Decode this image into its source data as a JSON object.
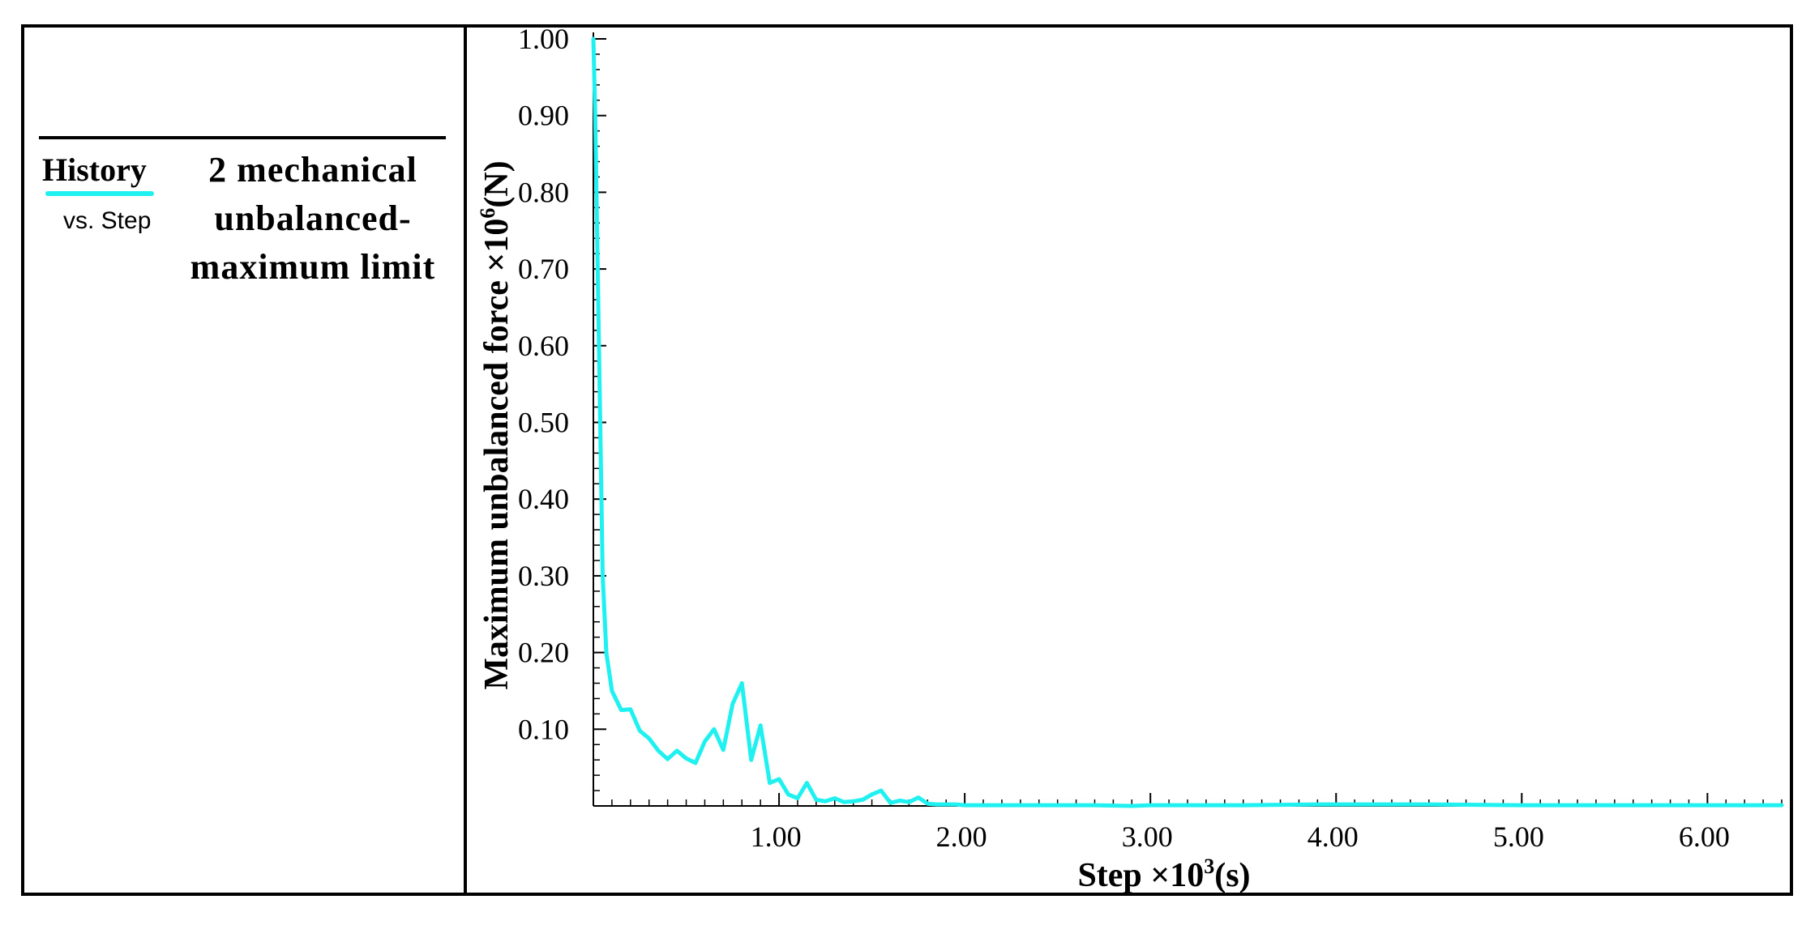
{
  "legend": {
    "title": "History",
    "subtitle": "vs. Step",
    "series_label_lines": [
      "2 mechanical",
      "unbalanced-",
      "maximum limit"
    ]
  },
  "chart_data": {
    "type": "line",
    "xlabel_base": "Step ×10",
    "xlabel_exp": "3",
    "xlabel_unit": "(s)",
    "ylabel_base": "Maximum unbalanced force ×10",
    "ylabel_exp": "6",
    "ylabel_unit": "(N)",
    "xlim": [
      0,
      6.4
    ],
    "ylim": [
      0,
      1.0
    ],
    "xticks": [
      1.0,
      2.0,
      3.0,
      4.0,
      5.0,
      6.0
    ],
    "xtick_labels": [
      "1.00",
      "2.00",
      "3.00",
      "4.00",
      "5.00",
      "6.00"
    ],
    "yticks": [
      0.1,
      0.2,
      0.3,
      0.4,
      0.5,
      0.6,
      0.7,
      0.8,
      0.9,
      1.0
    ],
    "ytick_labels": [
      "0.10",
      "0.20",
      "0.30",
      "0.40",
      "0.50",
      "0.60",
      "0.70",
      "0.80",
      "0.90",
      "1.00"
    ],
    "grid": false,
    "line_color": "#1ff0f0",
    "series": [
      {
        "x": [
          0.0,
          0.01,
          0.03,
          0.05,
          0.07,
          0.1,
          0.15,
          0.2,
          0.25,
          0.3,
          0.35,
          0.4,
          0.45,
          0.5,
          0.55,
          0.6,
          0.65,
          0.7,
          0.75,
          0.8,
          0.85,
          0.9,
          0.95,
          1.0,
          1.05,
          1.1,
          1.15,
          1.2,
          1.25,
          1.3,
          1.35,
          1.4,
          1.45,
          1.5,
          1.55,
          1.6,
          1.65,
          1.7,
          1.75,
          1.8,
          1.85,
          1.9,
          1.95,
          2.0,
          2.1,
          2.3,
          2.5,
          2.7,
          2.9,
          3.0,
          3.5,
          3.9,
          4.0,
          4.5,
          5.0,
          5.5,
          6.0,
          6.4
        ],
        "y": [
          1.0,
          0.9,
          0.6,
          0.3,
          0.2,
          0.15,
          0.125,
          0.126,
          0.098,
          0.088,
          0.072,
          0.061,
          0.072,
          0.062,
          0.056,
          0.084,
          0.1,
          0.073,
          0.133,
          0.16,
          0.06,
          0.105,
          0.03,
          0.035,
          0.015,
          0.01,
          0.03,
          0.008,
          0.006,
          0.01,
          0.005,
          0.006,
          0.008,
          0.015,
          0.02,
          0.004,
          0.007,
          0.005,
          0.011,
          0.003,
          0.002,
          0.002,
          0.002,
          0.001,
          0.001,
          0.001,
          0.001,
          0.001,
          0.0,
          0.001,
          0.001,
          0.002,
          0.002,
          0.002,
          0.001,
          0.001,
          0.001,
          0.001
        ]
      }
    ]
  }
}
